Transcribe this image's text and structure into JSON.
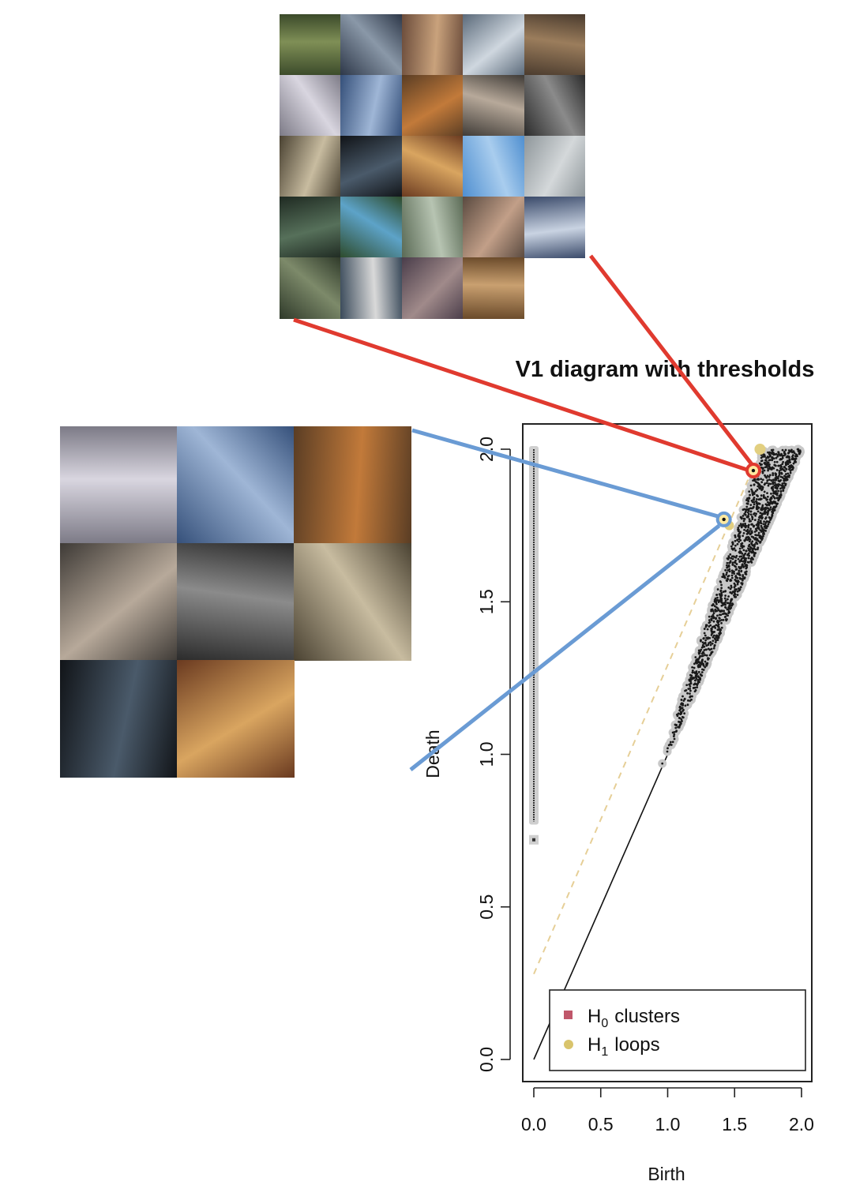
{
  "chart_data": {
    "type": "scatter",
    "title": "V1  diagram with thresholds",
    "xlabel": "Birth",
    "ylabel": "Death",
    "xlim": [
      0,
      2.05
    ],
    "ylim": [
      0,
      2.05
    ],
    "x_ticks": [
      "0.0",
      "0.5",
      "1.0",
      "1.5",
      "2.0"
    ],
    "y_ticks": [
      "0.0",
      "0.5",
      "1.0",
      "1.5",
      "2.0"
    ],
    "legend": {
      "position": "bottom-right",
      "entries": [
        {
          "base": "H",
          "sub": "0",
          "label": "clusters",
          "color": "#c0576a",
          "marker": "square"
        },
        {
          "base": "H",
          "sub": "1",
          "label": "loops",
          "color": "#d9c46c",
          "marker": "circle"
        }
      ]
    },
    "series": [
      {
        "name": "H0 clusters",
        "x": 0.0,
        "y_range": [
          0.78,
          2.0
        ],
        "extra_point": [
          0.0,
          0.72
        ]
      },
      {
        "name": "H1 loops",
        "x_range": [
          0.96,
          2.0
        ],
        "y_range": [
          0.96,
          2.0
        ],
        "highlighted": [
          {
            "x": 1.64,
            "y": 1.93,
            "ring": "#e03a2f"
          },
          {
            "x": 1.42,
            "y": 1.77,
            "ring": "#6a9bd4"
          }
        ],
        "outliers": [
          [
            1.69,
            2.0
          ],
          [
            1.46,
            1.75
          ]
        ]
      }
    ],
    "diagonal": {
      "from": [
        0,
        0
      ],
      "to": [
        2.0,
        2.0
      ]
    },
    "threshold_line": {
      "from": [
        0.0,
        0.28
      ],
      "to": [
        1.6,
        1.9
      ],
      "color": "#e6cf97",
      "style": "dashed"
    }
  },
  "image_grids": [
    {
      "name": "red-cluster-image-grid",
      "rows": 5,
      "cols": 5,
      "count": 24,
      "link_color": "#e03a2f"
    },
    {
      "name": "blue-cluster-image-grid",
      "rows": 3,
      "cols": 3,
      "count": 8,
      "link_color": "#6a9bd4"
    }
  ],
  "colors": {
    "red_link": "#e03a2f",
    "blue_link": "#6a9bd4",
    "points": "#1a1a1a",
    "halo": "#c8c8c8"
  }
}
